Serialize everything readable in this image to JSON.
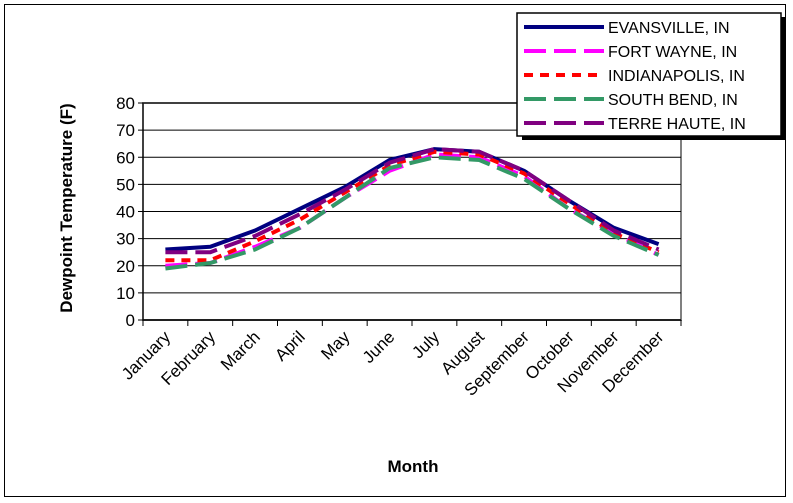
{
  "chart_data": {
    "type": "line",
    "title": "",
    "xlabel": "Month",
    "ylabel": "Dewpoint Temperature (F)",
    "ylim": [
      0,
      80
    ],
    "yticks": [
      0,
      10,
      20,
      30,
      40,
      50,
      60,
      70,
      80
    ],
    "grid": true,
    "legend_position": "top-right",
    "categories": [
      "January",
      "February",
      "March",
      "April",
      "May",
      "June",
      "July",
      "August",
      "September",
      "October",
      "November",
      "December"
    ],
    "series": [
      {
        "name": "EVANSVILLE, IN",
        "color": "#000080",
        "dash": "solid",
        "values": [
          26,
          27,
          33,
          41,
          49,
          59,
          63,
          62,
          55,
          44,
          34,
          28
        ]
      },
      {
        "name": "FORT WAYNE, IN",
        "color": "#ff00ff",
        "dash": "long",
        "values": [
          20,
          21,
          27,
          34,
          45,
          55,
          61,
          60,
          53,
          41,
          32,
          24
        ]
      },
      {
        "name": "INDIANAPOLIS, IN",
        "color": "#ff0000",
        "dash": "short",
        "values": [
          22,
          22,
          29,
          37,
          47,
          57,
          62,
          61,
          54,
          43,
          32,
          25
        ]
      },
      {
        "name": "SOUTH BEND, IN",
        "color": "#339966",
        "dash": "long",
        "values": [
          19,
          21,
          26,
          34,
          45,
          56,
          60,
          59,
          52,
          41,
          31,
          24
        ]
      },
      {
        "name": "TERRE HAUTE, IN",
        "color": "#800080",
        "dash": "long",
        "values": [
          25,
          25,
          31,
          39,
          48,
          58,
          63,
          62,
          55,
          44,
          33,
          26
        ]
      }
    ]
  }
}
